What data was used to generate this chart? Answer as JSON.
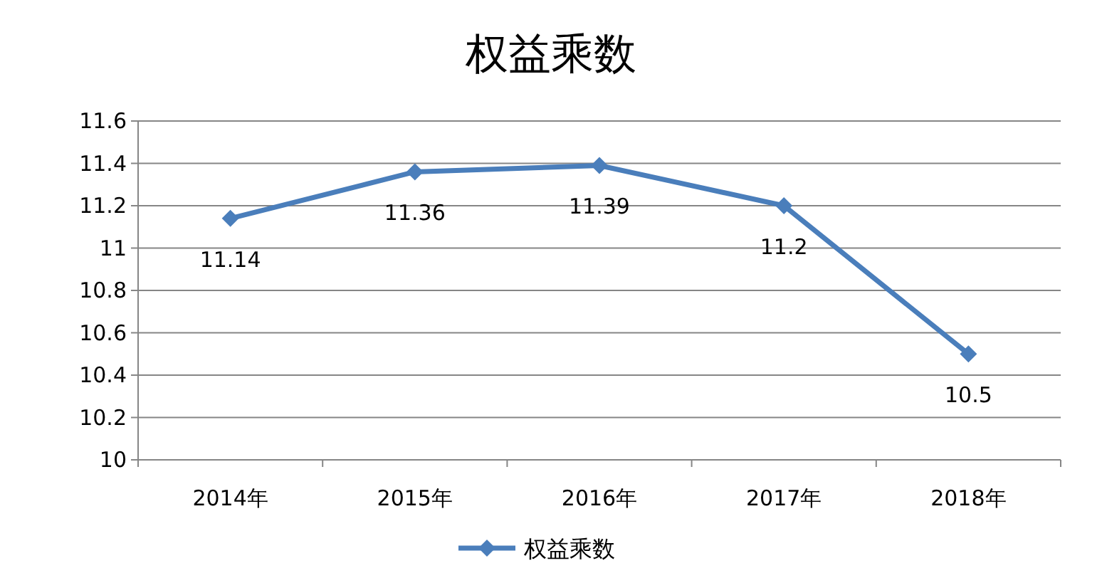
{
  "chart_data": {
    "type": "line",
    "title": "权益乘数",
    "categories": [
      "2014年",
      "2015年",
      "2016年",
      "2017年",
      "2018年"
    ],
    "series": [
      {
        "name": "权益乘数",
        "color": "#4a7ebb",
        "values": [
          11.14,
          11.36,
          11.39,
          11.2,
          10.5
        ]
      }
    ],
    "ylim": [
      10,
      11.6
    ],
    "yticks": [
      10,
      10.2,
      10.4,
      10.6,
      10.8,
      11,
      11.2,
      11.4,
      11.6
    ],
    "grid": "y",
    "legend": "bottom",
    "marker": "diamond",
    "line_style": "solid",
    "data_labels": true
  }
}
